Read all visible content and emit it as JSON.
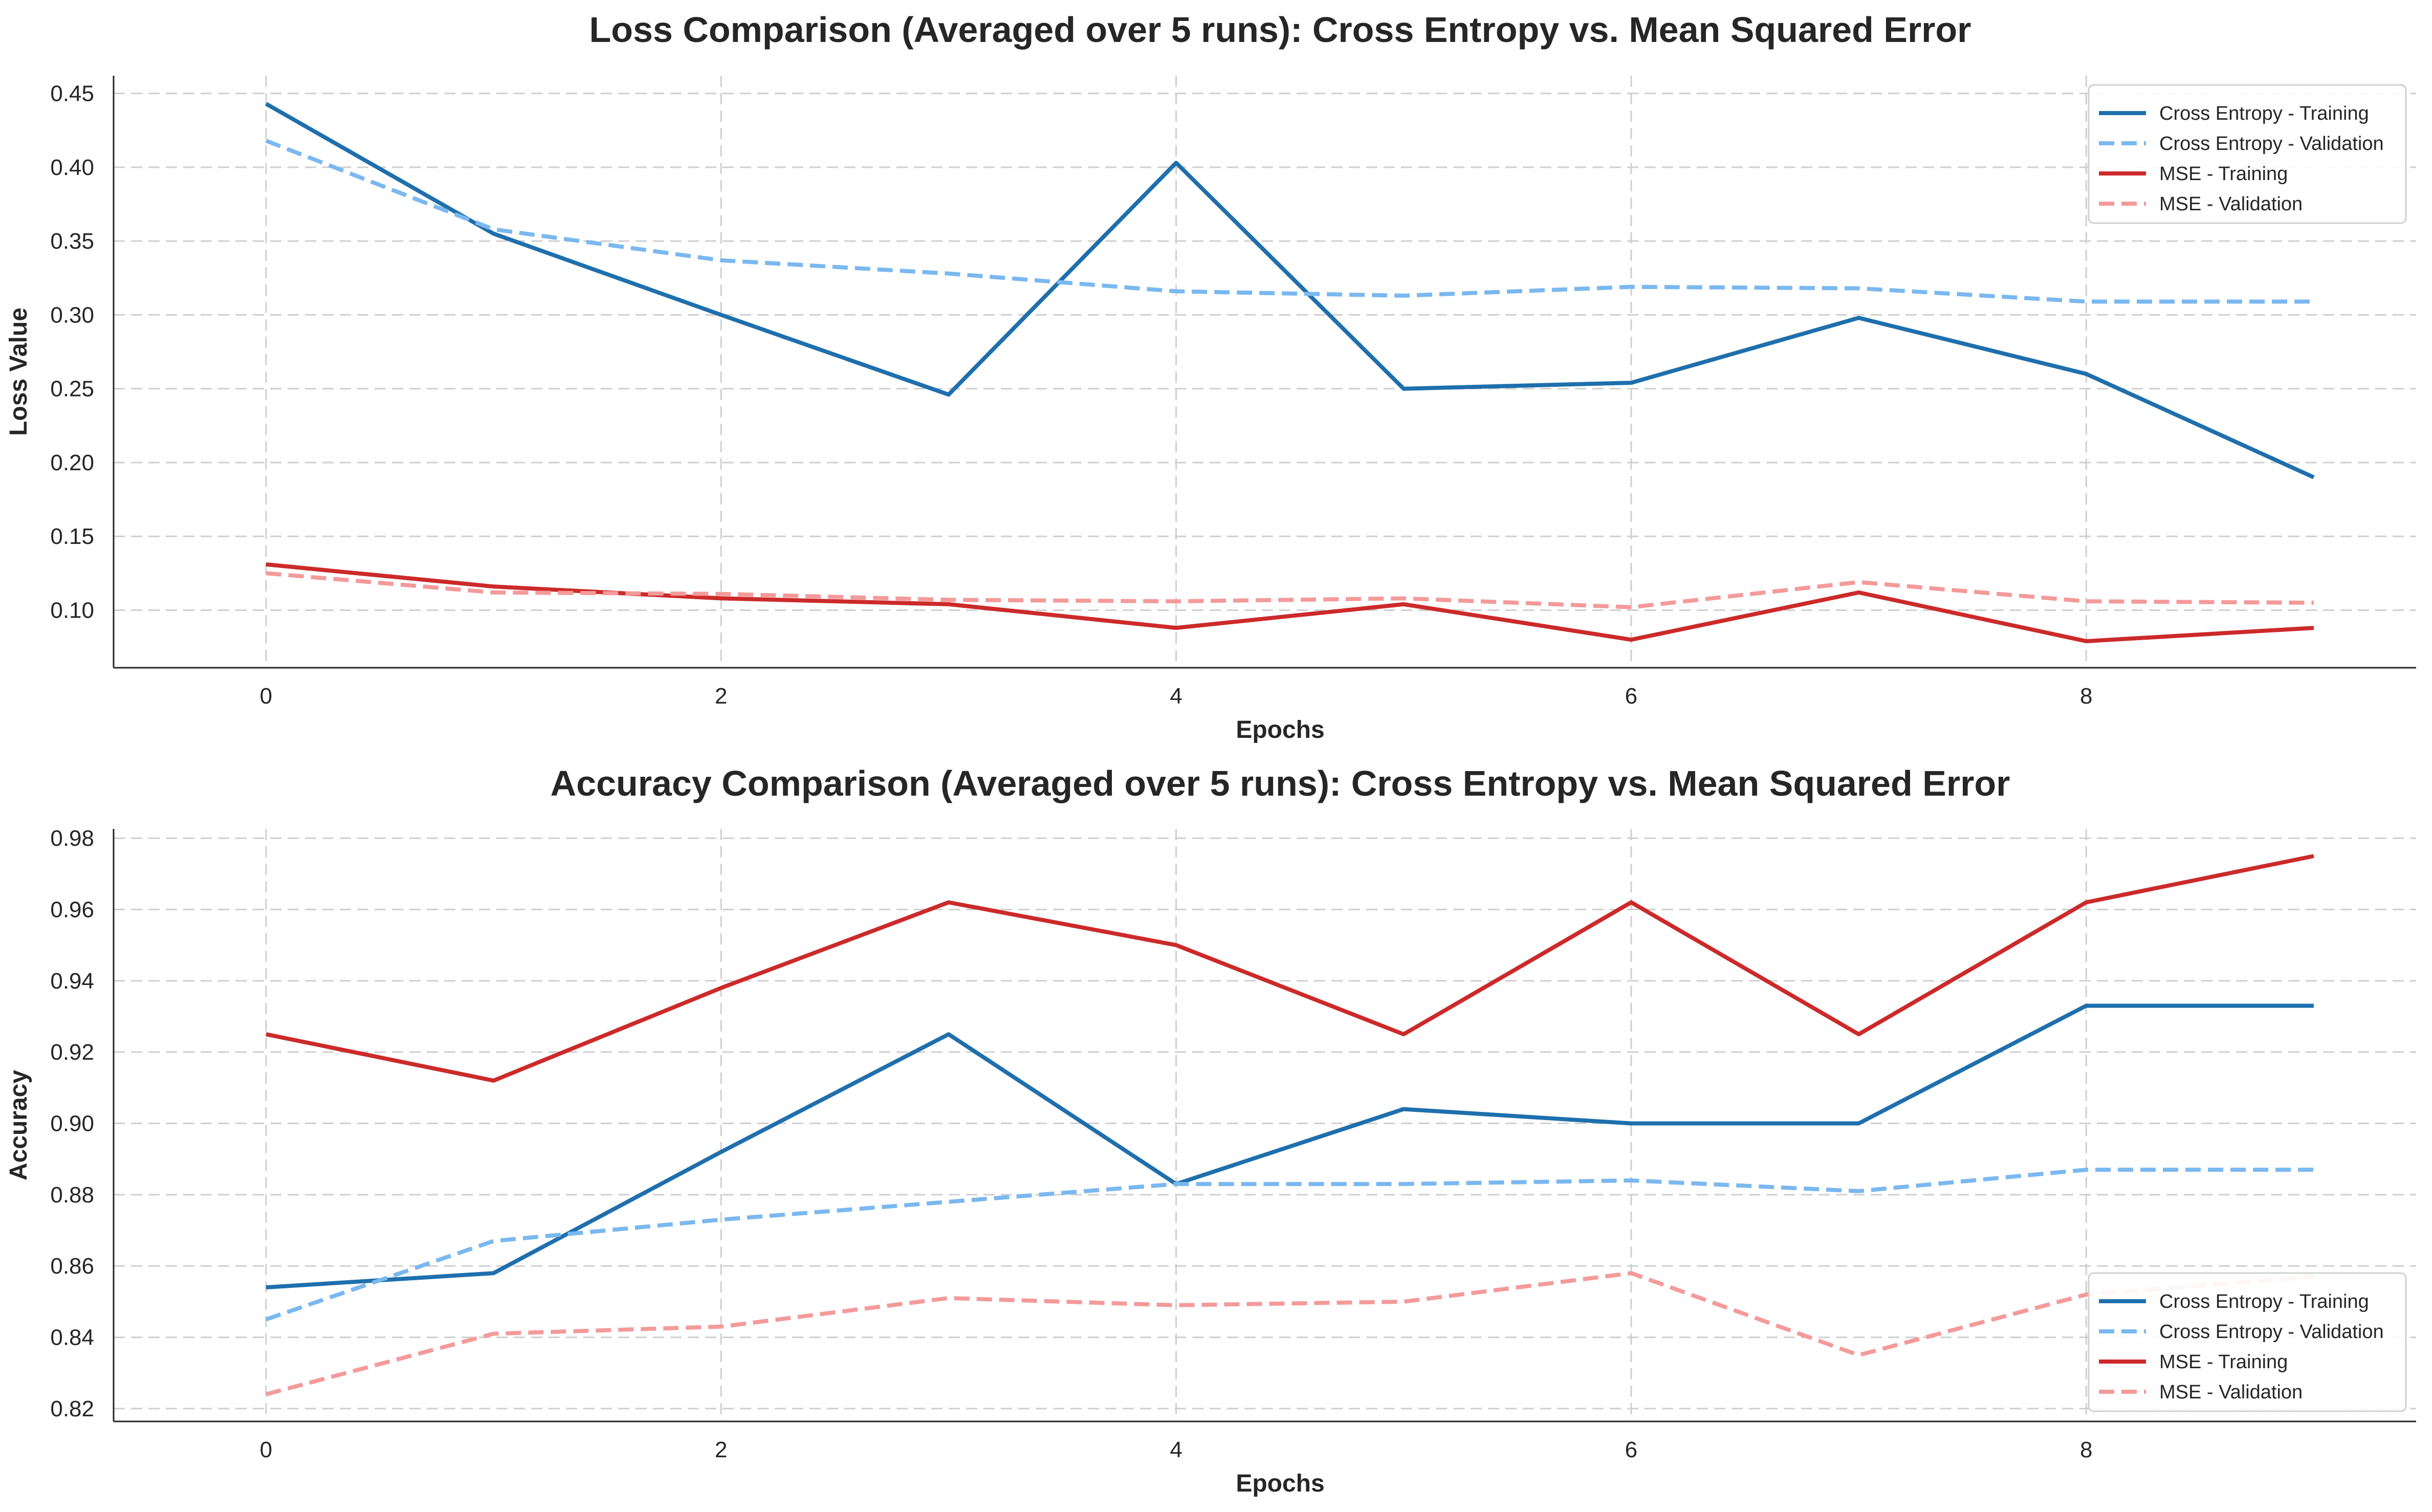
{
  "chart_data": [
    {
      "type": "line",
      "title": "Loss Comparison (Averaged over 5 runs): Cross Entropy vs. Mean Squared Error",
      "xlabel": "Epochs",
      "ylabel": "Loss Value",
      "xlim": [
        -0.67,
        9.45
      ],
      "ylim": [
        0.061,
        0.462
      ],
      "xticks": [
        0,
        2,
        4,
        6,
        8
      ],
      "yticks": [
        0.1,
        0.15,
        0.2,
        0.25,
        0.3,
        0.35,
        0.4,
        0.45
      ],
      "ytick_labels": [
        "0.10",
        "0.15",
        "0.20",
        "0.25",
        "0.30",
        "0.35",
        "0.40",
        "0.45"
      ],
      "grid": true,
      "legend_position": "top-right",
      "x": [
        0,
        1,
        2,
        3,
        4,
        5,
        6,
        7,
        8,
        9
      ],
      "series": [
        {
          "name": "Cross Entropy - Training",
          "color": "#1f6fad",
          "style": "solid",
          "values": [
            0.443,
            0.355,
            0.3,
            0.246,
            0.403,
            0.25,
            0.254,
            0.298,
            0.26,
            0.19
          ]
        },
        {
          "name": "Cross Entropy - Validation",
          "color": "#7ab8f0",
          "style": "dashed",
          "values": [
            0.418,
            0.358,
            0.337,
            0.328,
            0.316,
            0.313,
            0.319,
            0.318,
            0.309,
            0.309
          ]
        },
        {
          "name": "MSE - Training",
          "color": "#cc2a2a",
          "style": "solid",
          "values": [
            0.131,
            0.116,
            0.108,
            0.104,
            0.088,
            0.104,
            0.08,
            0.112,
            0.079,
            0.088
          ]
        },
        {
          "name": "MSE - Validation",
          "color": "#f49a9a",
          "style": "dashed",
          "values": [
            0.125,
            0.112,
            0.111,
            0.107,
            0.106,
            0.108,
            0.102,
            0.119,
            0.106,
            0.105
          ]
        }
      ]
    },
    {
      "type": "line",
      "title": "Accuracy Comparison (Averaged over 5 runs): Cross Entropy vs. Mean Squared Error",
      "xlabel": "Epochs",
      "ylabel": "Accuracy",
      "xlim": [
        -0.67,
        9.45
      ],
      "ylim": [
        0.8164,
        0.9826
      ],
      "xticks": [
        0,
        2,
        4,
        6,
        8
      ],
      "yticks": [
        0.82,
        0.84,
        0.86,
        0.88,
        0.9,
        0.92,
        0.94,
        0.96,
        0.98
      ],
      "ytick_labels": [
        "0.82",
        "0.84",
        "0.86",
        "0.88",
        "0.90",
        "0.92",
        "0.94",
        "0.96",
        "0.98"
      ],
      "grid": true,
      "legend_position": "bottom-right",
      "x": [
        0,
        1,
        2,
        3,
        4,
        5,
        6,
        7,
        8,
        9
      ],
      "series": [
        {
          "name": "Cross Entropy - Training",
          "color": "#1f6fad",
          "style": "solid",
          "values": [
            0.854,
            0.858,
            0.892,
            0.925,
            0.883,
            0.904,
            0.9,
            0.9,
            0.933,
            0.933
          ]
        },
        {
          "name": "Cross Entropy - Validation",
          "color": "#7ab8f0",
          "style": "dashed",
          "values": [
            0.845,
            0.867,
            0.873,
            0.878,
            0.883,
            0.883,
            0.884,
            0.881,
            0.887,
            0.887
          ]
        },
        {
          "name": "MSE - Training",
          "color": "#cc2a2a",
          "style": "solid",
          "values": [
            0.925,
            0.912,
            0.938,
            0.962,
            0.95,
            0.925,
            0.962,
            0.925,
            0.962,
            0.975
          ]
        },
        {
          "name": "MSE - Validation",
          "color": "#f49a9a",
          "style": "dashed",
          "values": [
            0.824,
            0.841,
            0.843,
            0.851,
            0.849,
            0.85,
            0.858,
            0.835,
            0.852,
            0.857
          ]
        }
      ]
    }
  ]
}
